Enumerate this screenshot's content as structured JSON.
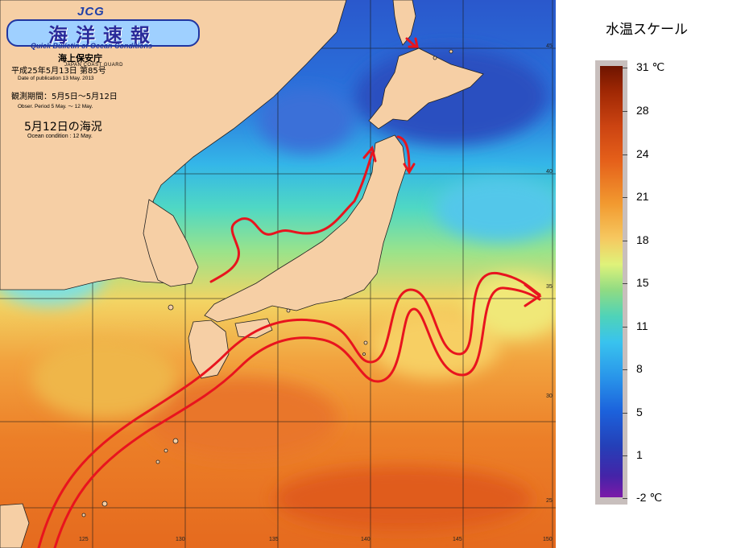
{
  "logo": {
    "jcg": "JCG",
    "title": "海洋速報",
    "subtitle": "Quick Bulletin of Ocean Conditions",
    "org": "海上保安庁",
    "org_en": "JAPAN COAST GUARD"
  },
  "header": {
    "issue": "平成25年5月13日 第85号",
    "issue_en": "Date of publication 13 May. 2013",
    "period": "観測期間：5月5日～5月12日",
    "period_en": "Obser. Period 5 May. ～ 12 May.",
    "condition": "5月12日の海況",
    "condition_en": "Ocean condition : 12 May."
  },
  "map": {
    "lat_labels": [
      "45",
      "40",
      "35",
      "30",
      "25"
    ],
    "lon_labels": [
      "125",
      "130",
      "135",
      "140",
      "145",
      "150"
    ],
    "land_color": "#f6cfa5",
    "current_color": "#e8141e"
  },
  "legend": {
    "title": "水温スケール",
    "ticks": [
      "31 ℃",
      "28",
      "24",
      "21",
      "18",
      "15",
      "11",
      "8",
      "5",
      "1",
      "-2 ℃"
    ]
  }
}
